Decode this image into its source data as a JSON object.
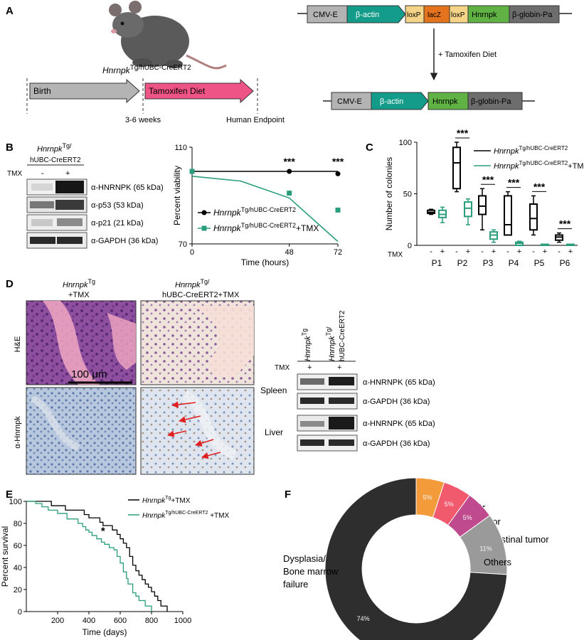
{
  "panels": {
    "A": {
      "label": "A",
      "mouse_genotype": {
        "gene": "Hnrnpk",
        "sup": "Tg/hUBC-CreERT2"
      },
      "timeline": {
        "birth": "Birth",
        "diet": "Tamoxifen Diet",
        "weeks": "3-6 weeks",
        "endpoint": "Human Endpoint"
      },
      "construct_top": [
        "CMV-E",
        "β-actin",
        "loxP",
        "lacZ",
        "loxP",
        "Hnrnpk",
        "β-globin-Pa"
      ],
      "construct_bottom": [
        "CMV-E",
        "β-actin",
        "Hnrnpk",
        "β-globin-Pa"
      ],
      "arrow_label": "+ Tamoxifen Diet",
      "colors": {
        "cmv": "#b3b3b3",
        "actin": "#149c8a",
        "loxp": "#f5d488",
        "lacz": "#e4731e",
        "hnrnpk": "#5fb243",
        "globin": "#6d6d6d",
        "birth": "#b4b4b4",
        "diet": "#ef5487"
      }
    },
    "B": {
      "label": "B",
      "blot_header": {
        "gene": "Hnrnpk",
        "sup": "Tg/",
        "line2": "hUBC-CreERT2"
      },
      "tmx_label": "TMX",
      "tmx_signs": [
        "-",
        "+"
      ],
      "rows": [
        "α-HNRNPK (65 kDa)",
        "α-p53 (53 kDa)",
        "α-p21 (21 kDa)",
        "α-GAPDH (36 kDa)"
      ]
    },
    "C": {
      "label": "C"
    },
    "D": {
      "label": "D",
      "col1": {
        "gene": "Hnrnpk",
        "sup": "Tg",
        "line2": "+TMX"
      },
      "col2": {
        "gene": "Hnrnpk",
        "sup": "Tg/",
        "line2": "hUBC-CreERT2+TMX"
      },
      "row_he": "H&E",
      "row_ihc": "α-Hnrnpk",
      "scale_bar": "100 μm",
      "wb_lanes": [
        {
          "gene": "Hnrnpk",
          "sup": "Tg",
          "line2": ""
        },
        {
          "gene": "Hnrnpk",
          "sup": "Tg/",
          "line2": "hUBC-CreERT2"
        }
      ],
      "tmx_label": "TMX",
      "tmx_signs": [
        "+",
        "+"
      ],
      "tissues": [
        "Spleen",
        "Liver"
      ],
      "wb_rows": [
        "α-HNRNPK (65 kDa)",
        "α-GAPDH (36 kDa)",
        "α-HNRNPK (65 kDa)",
        "α-GAPDH (36 kDa)"
      ]
    },
    "E": {
      "label": "E"
    },
    "F": {
      "label": "F"
    }
  },
  "chart_data": [
    {
      "id": "B-viability",
      "type": "line",
      "xlabel": "Time (hours)",
      "ylabel": "Percent viability",
      "xticks": [
        "0",
        "48",
        "72"
      ],
      "yticks": [
        "70",
        "110"
      ],
      "xlim": [
        0,
        72
      ],
      "ylim": [
        70,
        110
      ],
      "series": [
        {
          "name": "Hnrnpk",
          "sup": "Tg/hUBC-CreERT2",
          "color": "#000000",
          "marker": "circle",
          "x": [
            0,
            48,
            72
          ],
          "y": [
            100,
            100,
            99
          ],
          "fit": [
            [
              0,
              100
            ],
            [
              72,
              100
            ]
          ]
        },
        {
          "name": "Hnrnpk",
          "sup": "Tg/hUBC-CreERT2",
          "suffix": "+TMX",
          "color": "#2a9d7d",
          "marker": "square",
          "x": [
            0,
            48,
            72
          ],
          "y": [
            100,
            91,
            84
          ],
          "fit": [
            [
              0,
              98
            ],
            [
              24,
              96
            ],
            [
              48,
              89
            ],
            [
              72,
              71
            ]
          ]
        }
      ],
      "annotations": [
        {
          "x": 48,
          "y": 102,
          "text": "***"
        },
        {
          "x": 72,
          "y": 102,
          "text": "***"
        }
      ]
    },
    {
      "id": "C-colonies",
      "type": "box",
      "ylabel": "Number of colonies",
      "xlabel_row": "TMX",
      "signs": [
        "-",
        "+"
      ],
      "categories": [
        "P1",
        "P2",
        "P3",
        "P4",
        "P5",
        "P6"
      ],
      "yticks": [
        "0",
        "50",
        "100"
      ],
      "ylim": [
        0,
        100
      ],
      "series": [
        {
          "name": "Hnrnpk",
          "sup": "Tg/hUBC-CreERT2",
          "color": "#000000",
          "boxes": [
            [
              30,
              31,
              32,
              34,
              35
            ],
            [
              52,
              55,
              80,
              95,
              100
            ],
            [
              15,
              30,
              38,
              48,
              55
            ],
            [
              10,
              10,
              20,
              48,
              52
            ],
            [
              10,
              15,
              26,
              40,
              48
            ],
            [
              3,
              5,
              8,
              10,
              12
            ]
          ]
        },
        {
          "name": "Hnrnpk",
          "sup": "Tg/hUBC-CreERT2",
          "suffix": "+TMX",
          "color": "#2a9d7d",
          "boxes": [
            [
              22,
              27,
              30,
              34,
              37
            ],
            [
              20,
              28,
              36,
              42,
              45
            ],
            [
              3,
              6,
              10,
              13,
              15
            ],
            [
              0,
              0,
              2,
              3,
              4
            ],
            [
              0,
              0,
              0,
              1,
              1
            ],
            [
              0,
              0,
              0,
              1,
              1
            ]
          ]
        }
      ],
      "annotations": [
        "",
        "***",
        "***",
        "***",
        "***",
        "***"
      ]
    },
    {
      "id": "E-survival",
      "type": "line",
      "xlabel": "Time (days)",
      "ylabel": "Percent survival",
      "xticks": [
        "200",
        "400",
        "600",
        "800",
        "1000"
      ],
      "yticks": [
        "0",
        "20",
        "40",
        "60",
        "80",
        "100"
      ],
      "xlim": [
        0,
        1000
      ],
      "ylim": [
        0,
        100
      ],
      "series": [
        {
          "name": "Hnrnpk",
          "sup": "Tg",
          "suffix": "+TMX",
          "color": "#000000",
          "x": [
            0,
            140,
            160,
            200,
            250,
            330,
            370,
            400,
            440,
            470,
            490,
            520,
            550,
            580,
            600,
            620,
            640,
            660,
            680,
            700,
            720,
            740,
            760,
            780,
            800,
            820,
            840,
            860,
            900
          ],
          "y": [
            100,
            100,
            96,
            96,
            92,
            92,
            88,
            85,
            85,
            81,
            78,
            78,
            74,
            70,
            66,
            62,
            58,
            50,
            42,
            37,
            33,
            29,
            25,
            22,
            18,
            14,
            10,
            5,
            0
          ]
        },
        {
          "name": "Hnrnpk",
          "sup": "Tg/hUBC-CreERT2",
          "suffix": " +TMX",
          "color": "#2a9d7d",
          "x": [
            0,
            60,
            100,
            140,
            180,
            200,
            240,
            260,
            300,
            330,
            360,
            380,
            400,
            420,
            450,
            480,
            500,
            530,
            560,
            580,
            600,
            620,
            640,
            650,
            680,
            700,
            720,
            760,
            800
          ],
          "y": [
            100,
            98,
            95,
            92,
            92,
            89,
            89,
            84,
            84,
            80,
            77,
            74,
            72,
            69,
            66,
            63,
            61,
            58,
            56,
            50,
            44,
            36,
            30,
            25,
            17,
            14,
            10,
            5,
            0
          ]
        }
      ],
      "annotations": [
        {
          "x": 490,
          "y": 70,
          "text": "*"
        }
      ]
    },
    {
      "id": "F-causes",
      "type": "pie",
      "slices": [
        {
          "label": "Tail tumor",
          "value": 5,
          "pct": "5%",
          "color": "#f39a3a"
        },
        {
          "label": "Lung tumor",
          "value": 5,
          "pct": "5%",
          "color": "#f05a6c"
        },
        {
          "label": "Mediastinal tumor",
          "value": 5,
          "pct": "5%",
          "color": "#c04a8e"
        },
        {
          "label": "Others",
          "value": 11,
          "pct": "11%",
          "color": "#9a9a9a"
        },
        {
          "label": "Dysplasia/\nBone marrow\nfailure",
          "value": 74,
          "pct": "74%",
          "color": "#2e2e2e"
        }
      ]
    }
  ]
}
